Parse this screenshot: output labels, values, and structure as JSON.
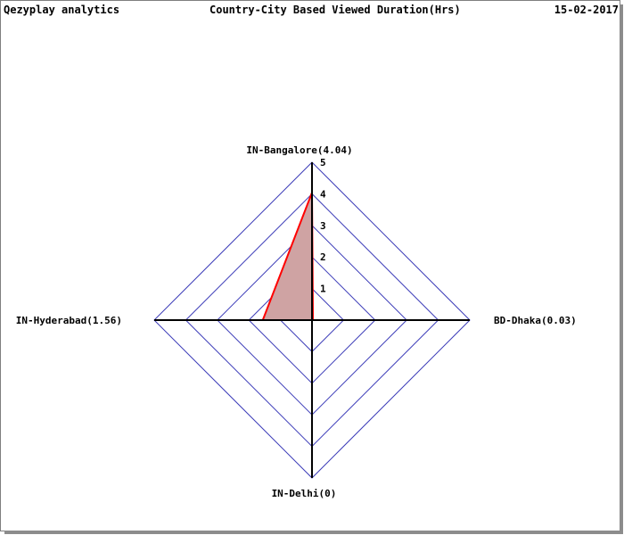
{
  "header": {
    "brand": "Qezyplay analytics",
    "title": "Country-City Based Viewed Duration(Hrs)",
    "date": "15-02-2017"
  },
  "colors": {
    "grid": "#3b3bb8",
    "axis": "#000000",
    "series_line": "#ff0000",
    "series_fill": "#cfa3a3"
  },
  "chart_data": {
    "type": "radar",
    "title": "Country-City Based Viewed Duration(Hrs)",
    "categories": [
      "IN-Bangalore",
      "BD-Dhaka",
      "IN-Delhi",
      "IN-Hyderabad"
    ],
    "category_labels": [
      "IN-Bangalore(4.04)",
      "BD-Dhaka(0.03)",
      "IN-Delhi(0)",
      "IN-Hyderabad(1.56)"
    ],
    "series": [
      {
        "values": [
          4.04,
          0.03,
          0,
          1.56
        ]
      }
    ],
    "rmax": 5,
    "ticks": [
      "1",
      "2",
      "3",
      "4",
      "5"
    ],
    "grid": true
  }
}
